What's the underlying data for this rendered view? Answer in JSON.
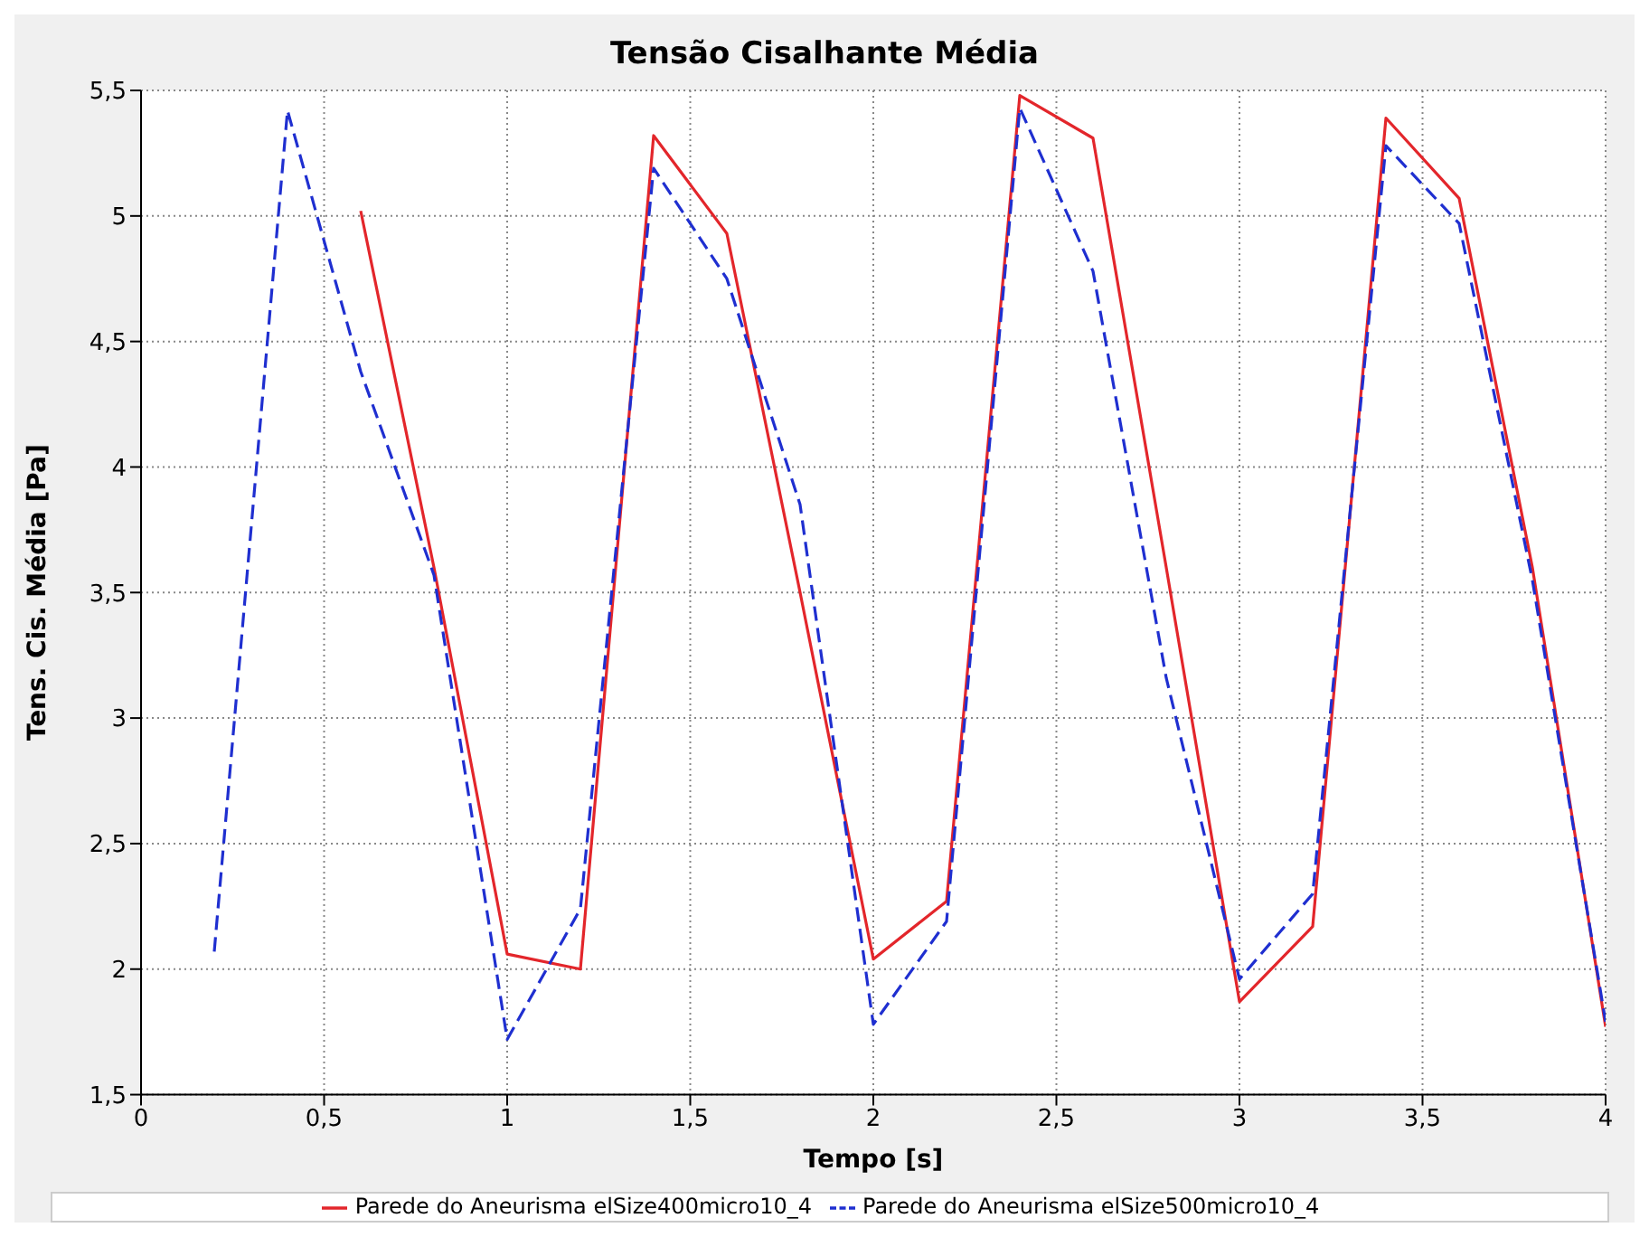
{
  "chart_data": {
    "type": "line",
    "title": "Tensão Cisalhante Média",
    "xlabel": "Tempo [s]",
    "ylabel": "Tens. Cis. Média [Pa]",
    "xlim": [
      0,
      4
    ],
    "xticks": [
      0,
      {
        "value": 0.5,
        "label": "0,5"
      },
      1,
      {
        "value": 1.5,
        "label": "1,5"
      },
      2,
      {
        "value": 2.5,
        "label": "2,5"
      },
      3,
      {
        "value": 3.5,
        "label": "3,5"
      },
      4
    ],
    "ylim": [
      1.5,
      5.5
    ],
    "yticks": [
      {
        "value": 1.5,
        "label": "1,5"
      },
      2,
      {
        "value": 2.5,
        "label": "2,5"
      },
      3,
      {
        "value": 3.5,
        "label": "3,5"
      },
      4,
      {
        "value": 4.5,
        "label": "4,5"
      },
      5,
      {
        "value": 5.5,
        "label": "5,5"
      }
    ],
    "grid": true,
    "legend": "bottom",
    "marker": "none",
    "series": [
      {
        "name": "Parede do Aneurisma elSize400micro10_4",
        "color": "#e3262b",
        "line_style": "solid",
        "x": [
          0.6,
          0.8,
          1.0,
          1.2,
          1.4,
          1.6,
          1.8,
          2.0,
          2.2,
          2.4,
          2.6,
          2.8,
          3.0,
          3.2,
          3.4,
          3.6,
          3.8,
          4.0
        ],
        "values": [
          5.02,
          3.6,
          2.06,
          2.0,
          5.32,
          4.93,
          3.5,
          2.04,
          2.27,
          5.48,
          5.31,
          3.6,
          1.87,
          2.17,
          5.39,
          5.07,
          3.6,
          1.77
        ]
      },
      {
        "name": "Parede do Aneurisma elSize500micro10_4",
        "color": "#1f2fd0",
        "line_style": "dashed",
        "x": [
          0.2,
          0.4,
          0.6,
          0.8,
          1.0,
          1.2,
          1.4,
          1.6,
          1.8,
          2.0,
          2.2,
          2.4,
          2.6,
          2.8,
          3.0,
          3.2,
          3.4,
          3.6,
          3.8,
          4.0
        ],
        "values": [
          2.07,
          5.42,
          4.38,
          3.57,
          1.72,
          2.24,
          5.19,
          4.75,
          3.85,
          1.78,
          2.19,
          5.43,
          4.78,
          3.16,
          1.96,
          2.3,
          5.28,
          4.97,
          3.55,
          1.79
        ]
      }
    ]
  }
}
